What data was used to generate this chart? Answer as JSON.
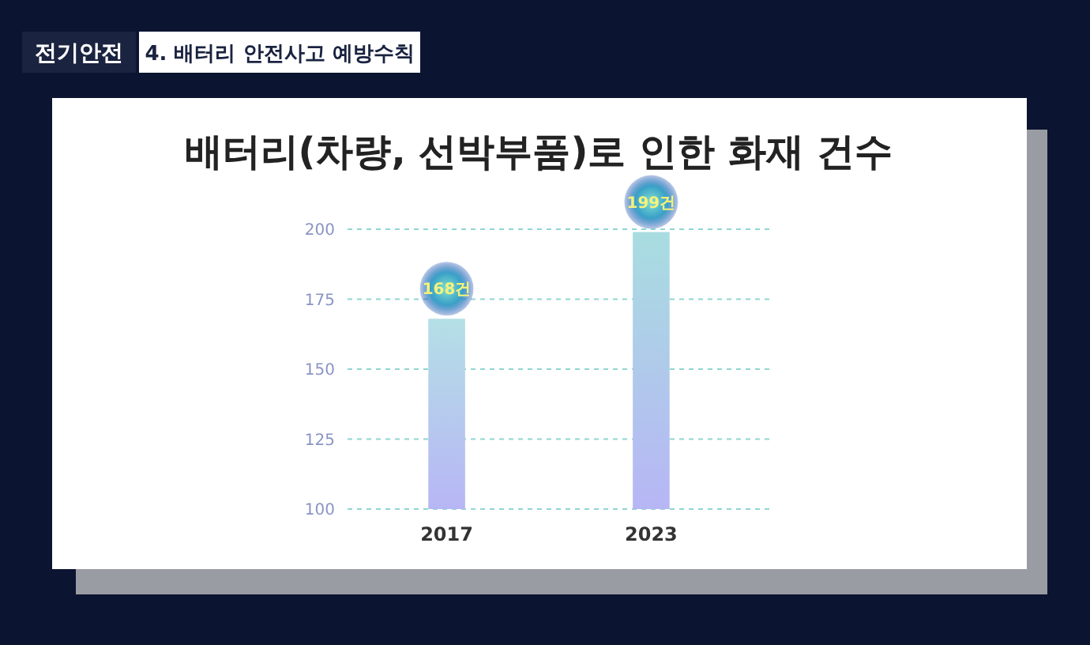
{
  "chart_data": {
    "type": "bar",
    "title": "배터리(차량, 선박부품)로 인한 화재 건수",
    "annotations": [
      "전기안전",
      "4. 배터리 안전사고 예방수칙"
    ],
    "categories": [
      "2017",
      "2023"
    ],
    "values": [
      168,
      199
    ],
    "value_labels": [
      "168건",
      "199건"
    ],
    "colors": [
      "#b4dfe6",
      "#a8dde0"
    ],
    "ylim": [
      100,
      200
    ],
    "yticks": [
      100,
      125,
      150,
      175,
      200
    ],
    "grid": "y"
  }
}
